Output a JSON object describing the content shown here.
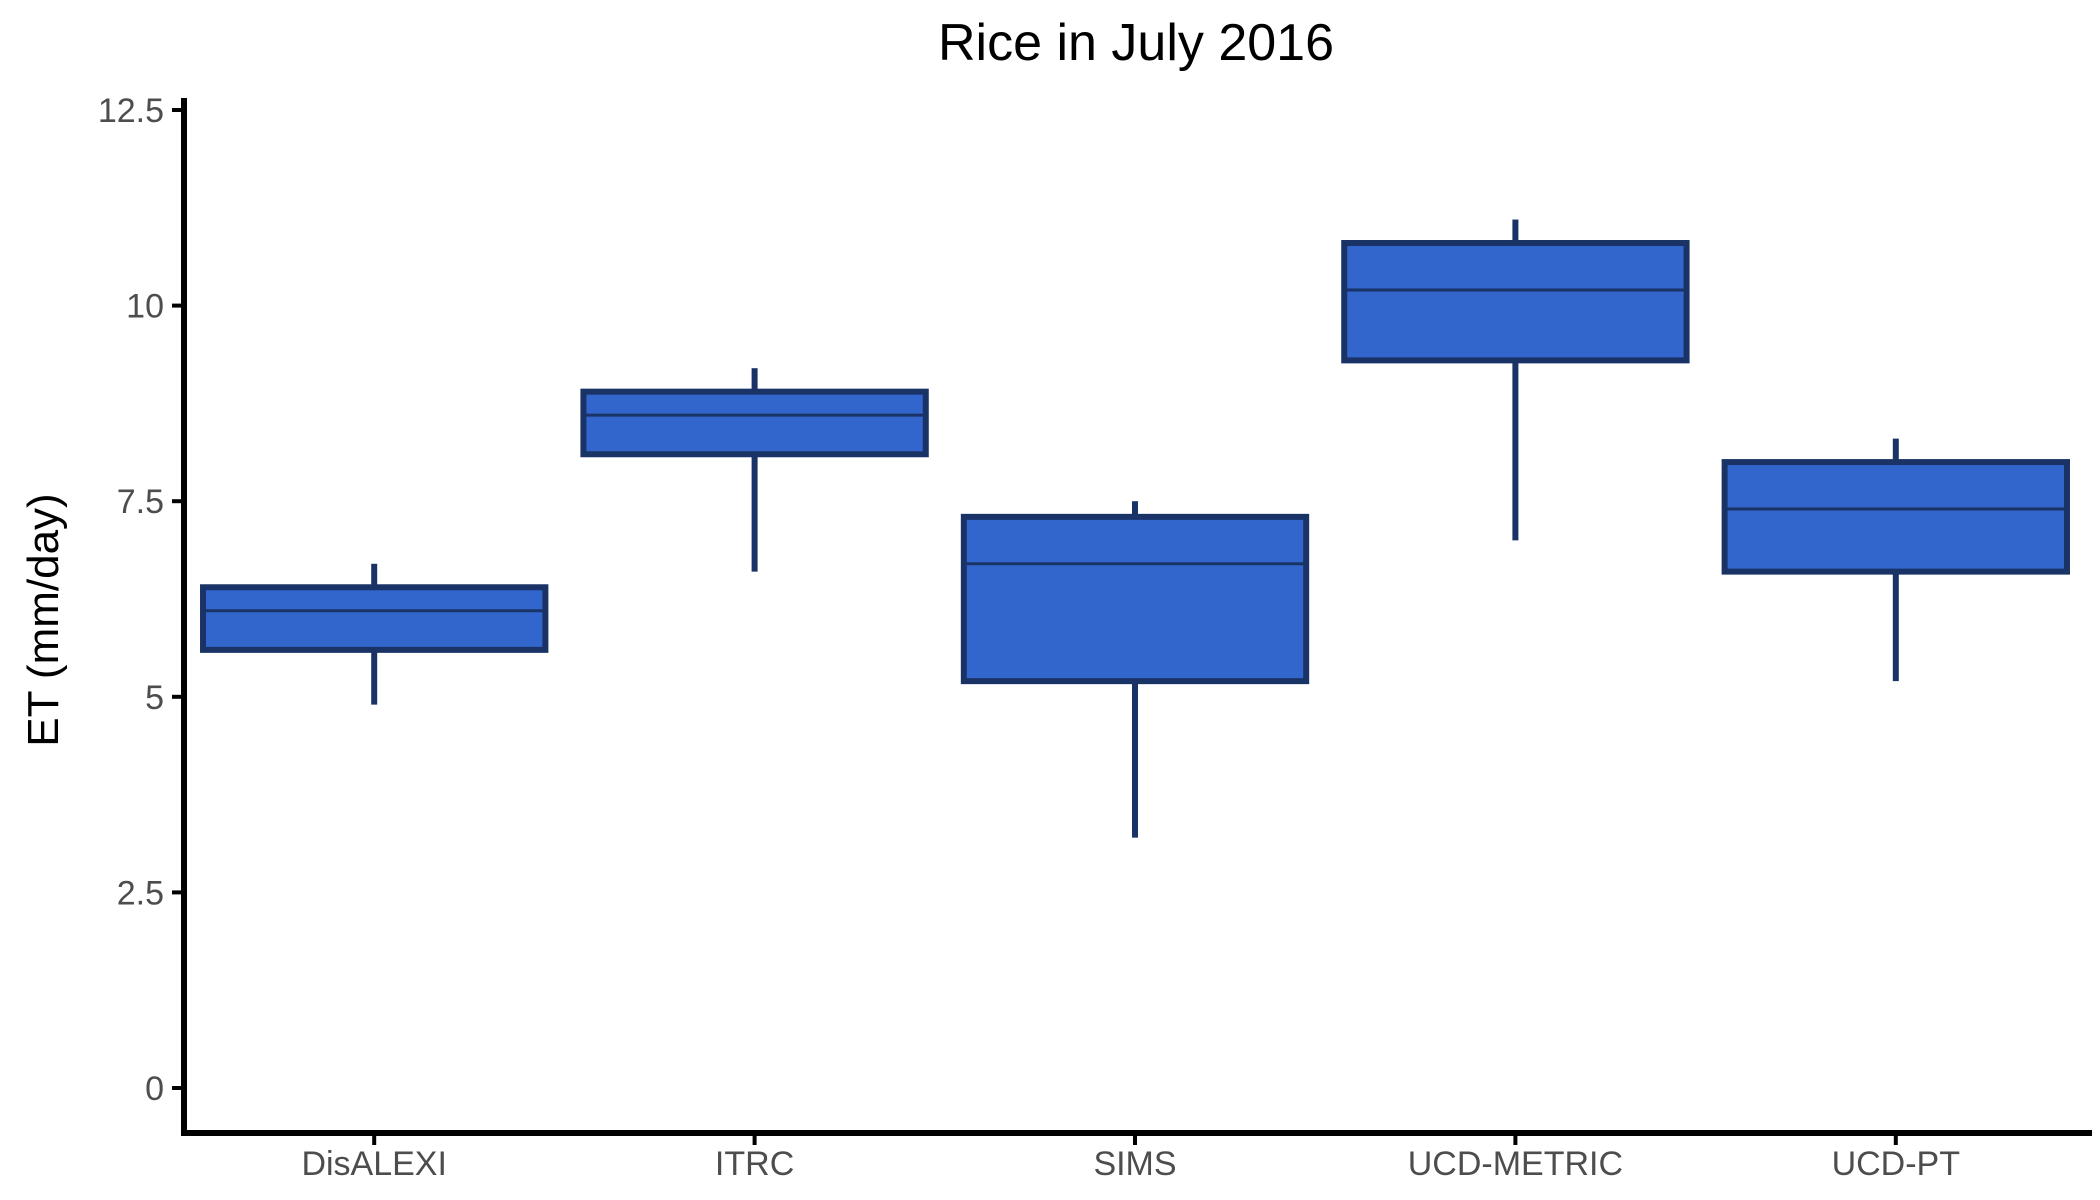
{
  "chart_data": {
    "type": "boxplot",
    "title": "Rice in July 2016",
    "xlabel": "",
    "ylabel": "ET (mm/day)",
    "ylim": [
      -0.6,
      12.7
    ],
    "yticks": [
      {
        "value": 0,
        "label": "0"
      },
      {
        "value": 2.5,
        "label": "2.5"
      },
      {
        "value": 5,
        "label": "5"
      },
      {
        "value": 7.5,
        "label": "7.5"
      },
      {
        "value": 10,
        "label": "10"
      },
      {
        "value": 12.5,
        "label": "12.5"
      }
    ],
    "categories": [
      "DisALEXI",
      "ITRC",
      "SIMS",
      "UCD-METRIC",
      "UCD-PT"
    ],
    "boxes": [
      {
        "category": "DisALEXI",
        "min": 4.9,
        "q1": 5.6,
        "median": 6.1,
        "q3": 6.4,
        "max": 6.7
      },
      {
        "category": "ITRC",
        "min": 6.6,
        "q1": 8.1,
        "median": 8.6,
        "q3": 8.9,
        "max": 9.2
      },
      {
        "category": "SIMS",
        "min": 3.2,
        "q1": 5.2,
        "median": 6.7,
        "q3": 7.3,
        "max": 7.5
      },
      {
        "category": "UCD-METRIC",
        "min": 7.0,
        "q1": 9.3,
        "median": 10.2,
        "q3": 10.8,
        "max": 11.1
      },
      {
        "category": "UCD-PT",
        "min": 5.2,
        "q1": 6.6,
        "median": 7.4,
        "q3": 8.0,
        "max": 8.3
      }
    ],
    "grid": false,
    "legend": "none",
    "colors": {
      "box_fill": "#3366CC",
      "box_border": "#1A3366",
      "axis": "#000000",
      "tick_label": "#4D4D4D",
      "text": "#000000"
    }
  }
}
